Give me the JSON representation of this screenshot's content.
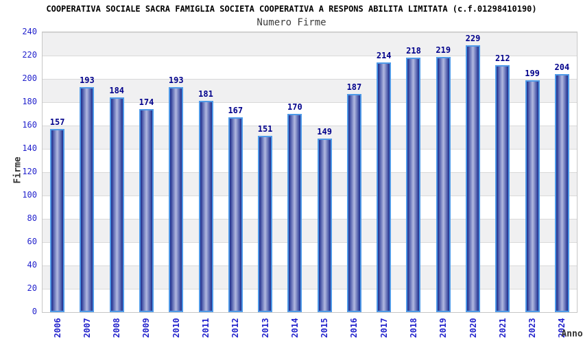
{
  "chart_data": {
    "type": "bar",
    "title": "COOPERATIVA SOCIALE SACRA FAMIGLIA SOCIETA COOPERATIVA A RESPONS ABILITA LIMITATA (c.f.01298410190)",
    "subtitle": "Numero Firme",
    "xlabel": "Anno",
    "ylabel": "Firme",
    "categories": [
      "2006",
      "2007",
      "2008",
      "2009",
      "2010",
      "2011",
      "2012",
      "2013",
      "2014",
      "2015",
      "2016",
      "2017",
      "2018",
      "2019",
      "2020",
      "2021",
      "2023",
      "2024"
    ],
    "values": [
      157,
      193,
      184,
      174,
      193,
      181,
      167,
      151,
      170,
      149,
      187,
      214,
      218,
      219,
      229,
      212,
      199,
      204
    ],
    "ylim": [
      0,
      240
    ],
    "ytick_step": 20,
    "ytick_labels": [
      "0",
      "20",
      "40",
      "60",
      "80",
      "100",
      "120",
      "140",
      "160",
      "180",
      "200",
      "220",
      "240"
    ],
    "grid": true,
    "legend_position": "none",
    "colors": {
      "bar_border": "#4f9ae8",
      "bar_edge": "#1b2a8a",
      "bar_mid": "#5f6cb4",
      "bar_center": "#b2b9e0",
      "value_label": "#00008b",
      "axis_text": "#2222cc",
      "title_text": "#000000",
      "subtitle_text": "#3c3c3c",
      "axis_label_text": "#333333",
      "band": "#f0f0f1",
      "band_alt": "#ffffff",
      "gridline": "#d9d9d9",
      "plot_border": "#c6c6c6",
      "background": "#ffffff"
    }
  }
}
